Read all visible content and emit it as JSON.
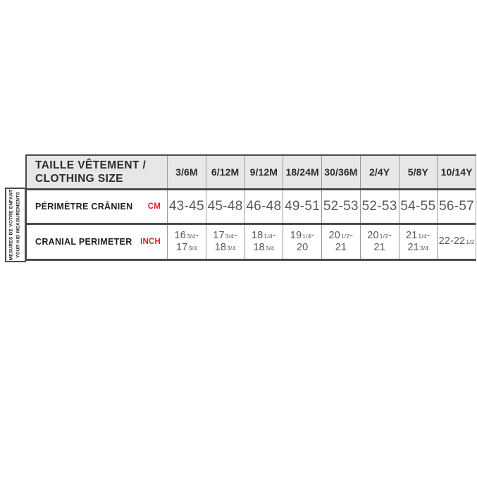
{
  "colors": {
    "page_bg": "#ffffff",
    "header_bg": "#e7e7e8",
    "border_dark": "#4b4b4d",
    "border_light": "#97989b",
    "text_dark": "#2b2a2c",
    "value_gray": "#57585a",
    "accent_red": "#e41e2d"
  },
  "sidebar": {
    "lines": [
      "MESURES DE VOTRE ENFANT",
      "YOUR KID MEASUREMENTS"
    ]
  },
  "table": {
    "title_lines": [
      "TAILLE VÊTEMENT /",
      "CLOTHING SIZE"
    ]
  },
  "display": {
    "inch_values": [
      "16{3/4}-|17{3/4}",
      "17{3/4}-|18{3/4}",
      "18{1/4}-|18{3/4}",
      "19{1/4}-|20",
      "20{1/2}-|21",
      "20{1/2}-|21",
      "21{1/4}-|21{3/4}",
      "22-22{1/2}"
    ]
  },
  "chart_data": {
    "type": "table",
    "title": "TAILLE VÊTEMENT / CLOTHING SIZE",
    "row_group_label": "MESURES DE VOTRE ENFANT / YOUR KID MEASUREMENTS",
    "columns": [
      "3/6M",
      "6/12M",
      "9/12M",
      "18/24M",
      "30/36M",
      "2/4Y",
      "5/8Y",
      "10/14Y"
    ],
    "rows": [
      {
        "label": "PÉRIMÈTRE CRÂNIEN",
        "unit": "CM",
        "values": [
          "43-45",
          "45-48",
          "46-48",
          "49-51",
          "52-53",
          "52-53",
          "54-55",
          "56-57"
        ]
      },
      {
        "label": "CRANIAL PERIMETER",
        "unit": "INCH",
        "values": [
          "16 3/4 - 17 3/4",
          "17 3/4 - 18 3/4",
          "18 1/4 - 18 3/4",
          "19 1/4 - 20",
          "20 1/2 - 21",
          "20 1/2 - 21",
          "21 1/4 - 21 3/4",
          "22 - 22 1/2"
        ]
      }
    ]
  }
}
